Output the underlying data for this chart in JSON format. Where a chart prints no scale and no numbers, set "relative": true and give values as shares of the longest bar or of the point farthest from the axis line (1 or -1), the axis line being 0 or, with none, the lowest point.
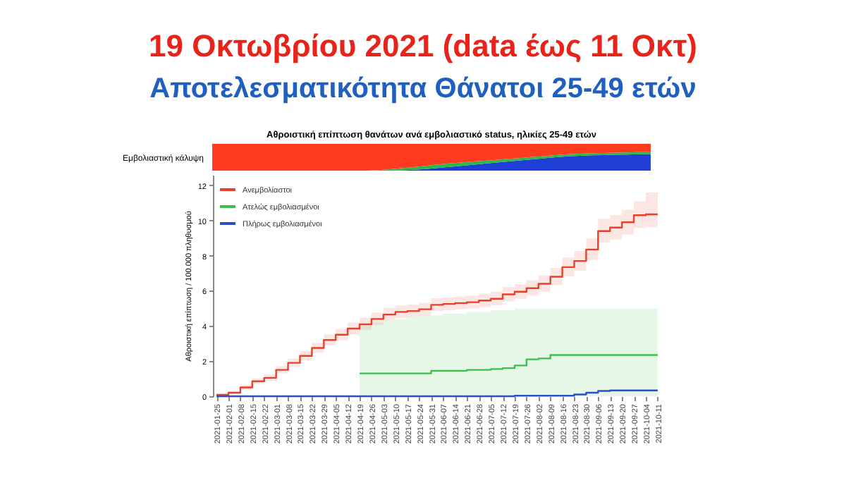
{
  "chart_data": [
    {
      "type": "area",
      "title": "19 Οκτωβρίου 2021 (data έως 11 Οκτ)",
      "subtitle": "Αποτελεσματικότητα Θάνατοι 25-49 ετών",
      "annotations": [
        "Αθροιστική επίπτωση θανάτων ανά εμβολιαστικό status, ηλικίες 25-49 ετών"
      ],
      "ylabel": "Εμβολιαστική κάλυψη",
      "relative": true,
      "stacked": true,
      "tick_labels": false,
      "categories": [
        null,
        null,
        null,
        null,
        null,
        null,
        null,
        null,
        null,
        null,
        null,
        null,
        null,
        null,
        null,
        null,
        null,
        null,
        null,
        null,
        null,
        null,
        null,
        null,
        null,
        null,
        null,
        null,
        null,
        null,
        null,
        null,
        null,
        null,
        null,
        null,
        null,
        null
      ],
      "series": [
        {
          "color": "#1f3fd6",
          "values": [
            0,
            0,
            0,
            0,
            0,
            0,
            0,
            0,
            0,
            0,
            0,
            0,
            0,
            0,
            0,
            0,
            0.01,
            0.03,
            0.06,
            0.1,
            0.14,
            0.18,
            0.22,
            0.26,
            0.3,
            0.34,
            0.38,
            0.42,
            0.46,
            0.5,
            0.53,
            0.55,
            0.57,
            0.58,
            0.59,
            0.6,
            0.61,
            0.62
          ]
        },
        {
          "color": "#2db84a",
          "values": [
            0,
            0,
            0,
            0,
            0,
            0,
            0,
            0,
            0,
            0,
            0,
            0,
            0,
            0,
            0.02,
            0.05,
            0.08,
            0.1,
            0.12,
            0.13,
            0.13,
            0.12,
            0.12,
            0.11,
            0.1,
            0.1,
            0.09,
            0.09,
            0.08,
            0.08,
            0.08,
            0.08,
            0.08,
            0.08,
            0.08,
            0.08,
            0.08,
            0.07
          ]
        },
        {
          "color": "#ff3b1f",
          "values": [
            1,
            1,
            1,
            1,
            1,
            1,
            1,
            1,
            1,
            1,
            1,
            1,
            1,
            1,
            0.98,
            0.95,
            0.91,
            0.87,
            0.82,
            0.77,
            0.73,
            0.7,
            0.66,
            0.63,
            0.6,
            0.56,
            0.53,
            0.49,
            0.46,
            0.42,
            0.39,
            0.37,
            0.35,
            0.34,
            0.33,
            0.32,
            0.31,
            0.31
          ]
        }
      ]
    },
    {
      "type": "step",
      "ylabel": "Αθροιστική επίπτωση / 100.000 πληθυσμού",
      "legend": "top left",
      "grid": false,
      "ylim": [
        0,
        12.6
      ],
      "yticks": [
        0,
        2,
        4,
        6,
        8,
        10,
        12
      ],
      "categories": [
        "2021-01-25",
        "2021-02-01",
        "2021-02-08",
        "2021-02-15",
        "2021-02-22",
        "2021-03-01",
        "2021-03-08",
        "2021-03-15",
        "2021-03-22",
        "2021-03-29",
        "2021-04-05",
        "2021-04-12",
        "2021-04-19",
        "2021-04-26",
        "2021-05-03",
        "2021-05-10",
        "2021-05-17",
        "2021-05-24",
        "2021-05-31",
        "2021-06-07",
        "2021-06-14",
        "2021-06-21",
        "2021-06-28",
        "2021-07-05",
        "2021-07-12",
        "2021-07-19",
        "2021-07-26",
        "2021-08-02",
        "2021-08-09",
        "2021-08-16",
        "2021-08-23",
        "2021-08-30",
        "2021-09-06",
        "2021-09-13",
        "2021-09-20",
        "2021-09-27",
        "2021-10-04",
        "2021-10-11"
      ],
      "series": [
        {
          "name": "Ανεμβολίαστοι",
          "color": "#e8402a",
          "values": [
            0.08,
            0.2,
            0.5,
            0.85,
            1.05,
            1.5,
            1.9,
            2.3,
            2.75,
            3.2,
            3.5,
            3.85,
            4.1,
            4.4,
            4.65,
            4.8,
            4.85,
            4.95,
            5.2,
            5.25,
            5.3,
            5.35,
            5.45,
            5.55,
            5.8,
            5.95,
            6.15,
            6.4,
            6.8,
            7.35,
            7.7,
            8.35,
            9.4,
            9.6,
            9.9,
            10.3,
            10.35,
            10.35
          ],
          "lower": [
            0.04,
            0.12,
            0.38,
            0.7,
            0.88,
            1.3,
            1.68,
            2.05,
            2.48,
            2.9,
            3.18,
            3.52,
            3.76,
            4.05,
            4.3,
            4.45,
            4.5,
            4.6,
            4.85,
            4.9,
            4.95,
            5.0,
            5.08,
            5.18,
            5.4,
            5.55,
            5.72,
            5.95,
            6.32,
            6.82,
            7.15,
            7.75,
            8.75,
            8.92,
            9.2,
            9.58,
            9.62,
            9.62
          ],
          "upper": [
            0.14,
            0.3,
            0.64,
            1.02,
            1.24,
            1.72,
            2.14,
            2.57,
            3.04,
            3.52,
            3.84,
            4.2,
            4.46,
            4.77,
            5.02,
            5.17,
            5.22,
            5.32,
            5.58,
            5.63,
            5.68,
            5.73,
            5.84,
            5.95,
            6.22,
            6.38,
            6.6,
            6.87,
            7.3,
            7.9,
            8.27,
            8.98,
            10.1,
            10.3,
            10.62,
            11.1,
            11.6,
            11.6
          ]
        },
        {
          "name": "Ατελώς εμβολιασμένοι",
          "color": "#3cc04a",
          "values": [
            null,
            null,
            null,
            null,
            null,
            null,
            null,
            null,
            null,
            null,
            null,
            null,
            1.3,
            1.3,
            1.3,
            1.3,
            1.3,
            1.3,
            1.45,
            1.45,
            1.45,
            1.5,
            1.5,
            1.55,
            1.6,
            1.75,
            2.1,
            2.15,
            2.35,
            2.35,
            2.35,
            2.35,
            2.35,
            2.35,
            2.35,
            2.35,
            2.35,
            2.35
          ],
          "lower": [
            null,
            null,
            null,
            null,
            null,
            null,
            null,
            null,
            null,
            null,
            null,
            null,
            0,
            0,
            0,
            0,
            0,
            0,
            0,
            0,
            0,
            0,
            0,
            0,
            0,
            0,
            0,
            0,
            0,
            0,
            0,
            0,
            0,
            0,
            0,
            0,
            0,
            0
          ],
          "upper": [
            null,
            null,
            null,
            null,
            null,
            null,
            null,
            null,
            null,
            null,
            null,
            null,
            4.1,
            4.2,
            4.3,
            4.4,
            4.5,
            4.6,
            4.6,
            4.7,
            4.7,
            4.8,
            4.8,
            4.9,
            4.9,
            5.0,
            5.0,
            5.0,
            5.0,
            5.0,
            5.0,
            5.0,
            5.0,
            5.0,
            5.0,
            5.0,
            5.0,
            5.0
          ]
        },
        {
          "name": "Πλήρως εμβολιασμένοι",
          "color": "#2a4fc8",
          "values": [
            0,
            0,
            0,
            0,
            0,
            0,
            0,
            0,
            0,
            0,
            0,
            0,
            0,
            0,
            0,
            0,
            0,
            0,
            0,
            0,
            0,
            0,
            0,
            0,
            0,
            0.03,
            0.03,
            0.03,
            0.03,
            0.03,
            0.1,
            0.2,
            0.3,
            0.33,
            0.33,
            0.33,
            0.33,
            0.33
          ]
        }
      ]
    }
  ]
}
